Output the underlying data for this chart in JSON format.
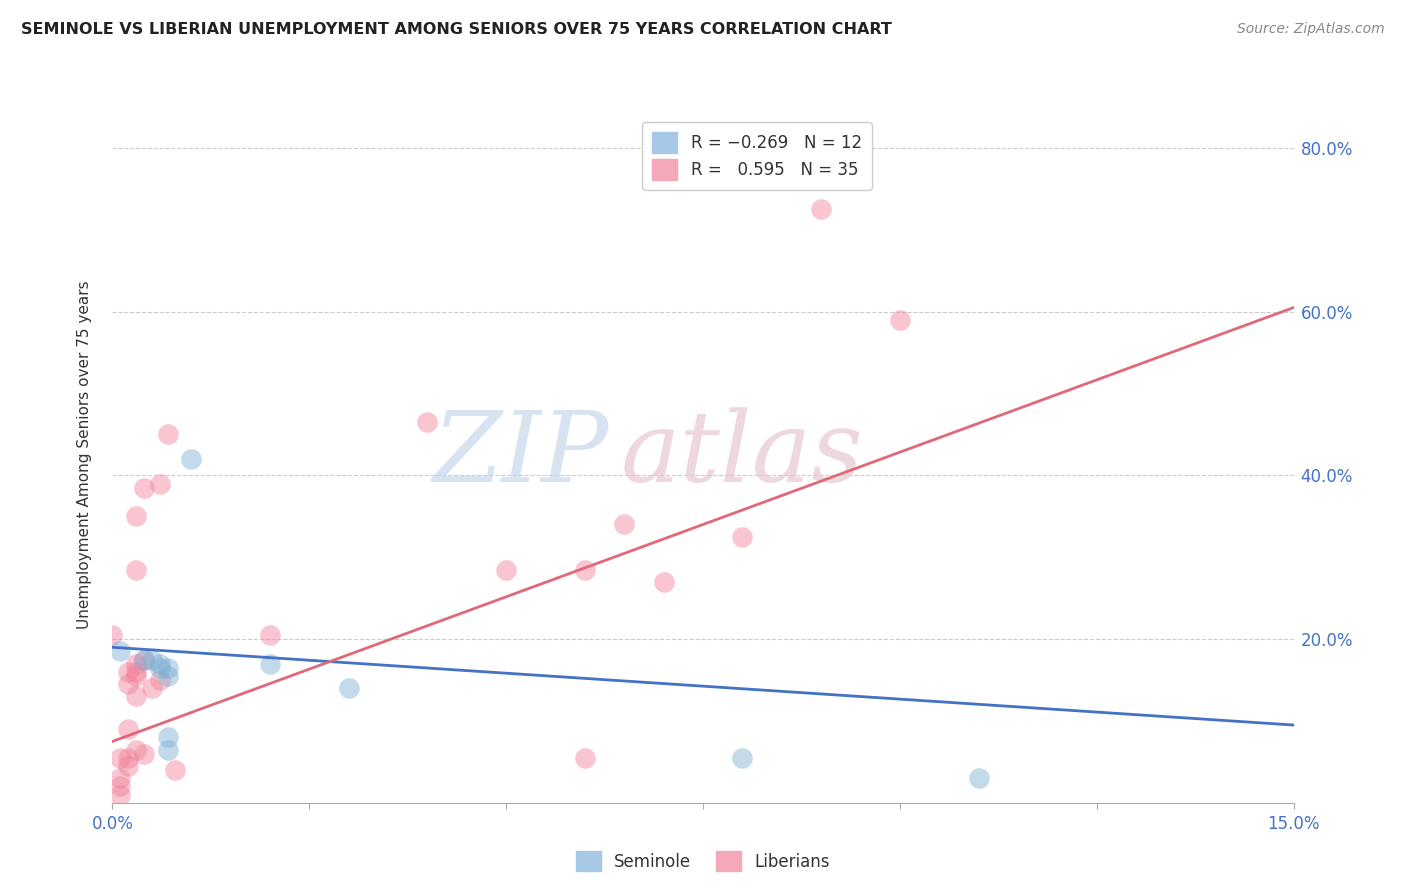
{
  "title": "SEMINOLE VS LIBERIAN UNEMPLOYMENT AMONG SENIORS OVER 75 YEARS CORRELATION CHART",
  "source": "Source: ZipAtlas.com",
  "ylabel": "Unemployment Among Seniors over 75 years",
  "xlim": [
    0.0,
    0.15
  ],
  "ylim": [
    0.0,
    0.85
  ],
  "ytick_vals": [
    0.2,
    0.4,
    0.6,
    0.8
  ],
  "ytick_labels": [
    "20.0%",
    "40.0%",
    "60.0%",
    "80.0%"
  ],
  "seminole_color": "#7bafd4",
  "liberian_color": "#f08098",
  "seminole_line_color": "#4472c4",
  "liberian_line_color": "#e06878",
  "seminole_points": [
    [
      0.001,
      0.185
    ],
    [
      0.004,
      0.175
    ],
    [
      0.005,
      0.175
    ],
    [
      0.006,
      0.17
    ],
    [
      0.006,
      0.165
    ],
    [
      0.007,
      0.165
    ],
    [
      0.007,
      0.155
    ],
    [
      0.007,
      0.08
    ],
    [
      0.007,
      0.065
    ],
    [
      0.01,
      0.42
    ],
    [
      0.02,
      0.17
    ],
    [
      0.03,
      0.14
    ],
    [
      0.08,
      0.055
    ],
    [
      0.11,
      0.03
    ]
  ],
  "liberian_points": [
    [
      0.0,
      0.205
    ],
    [
      0.001,
      0.055
    ],
    [
      0.001,
      0.03
    ],
    [
      0.001,
      0.02
    ],
    [
      0.001,
      0.01
    ],
    [
      0.002,
      0.16
    ],
    [
      0.002,
      0.145
    ],
    [
      0.002,
      0.09
    ],
    [
      0.002,
      0.055
    ],
    [
      0.002,
      0.045
    ],
    [
      0.003,
      0.35
    ],
    [
      0.003,
      0.285
    ],
    [
      0.003,
      0.17
    ],
    [
      0.003,
      0.16
    ],
    [
      0.003,
      0.155
    ],
    [
      0.003,
      0.13
    ],
    [
      0.003,
      0.065
    ],
    [
      0.004,
      0.385
    ],
    [
      0.004,
      0.175
    ],
    [
      0.004,
      0.06
    ],
    [
      0.005,
      0.14
    ],
    [
      0.006,
      0.39
    ],
    [
      0.006,
      0.15
    ],
    [
      0.007,
      0.45
    ],
    [
      0.008,
      0.04
    ],
    [
      0.02,
      0.205
    ],
    [
      0.04,
      0.465
    ],
    [
      0.05,
      0.285
    ],
    [
      0.06,
      0.285
    ],
    [
      0.06,
      0.055
    ],
    [
      0.065,
      0.34
    ],
    [
      0.07,
      0.27
    ],
    [
      0.08,
      0.325
    ],
    [
      0.09,
      0.725
    ],
    [
      0.1,
      0.59
    ]
  ],
  "seminole_line": {
    "x0": 0.0,
    "y0": 0.19,
    "x1": 0.15,
    "y1": 0.095
  },
  "liberian_line": {
    "x0": 0.0,
    "y0": 0.075,
    "x1": 0.15,
    "y1": 0.605
  }
}
